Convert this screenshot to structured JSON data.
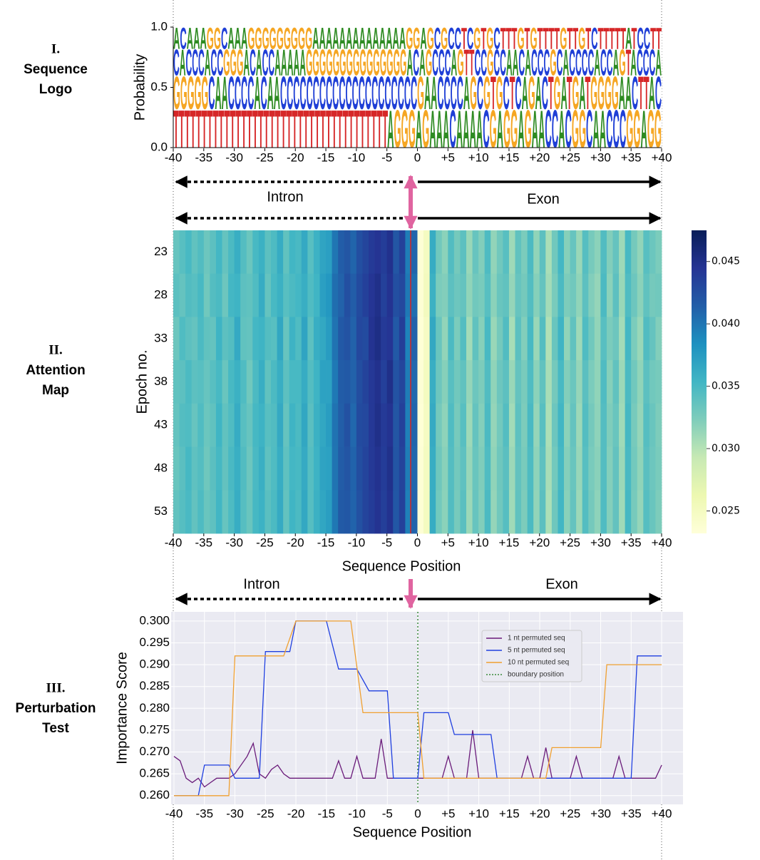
{
  "panels": [
    {
      "numeral": "I.",
      "lines": [
        "Sequence",
        "Logo"
      ]
    },
    {
      "numeral": "II.",
      "lines": [
        "Attention",
        "Map"
      ]
    },
    {
      "numeral": "III.",
      "lines": [
        "Perturbation",
        "Test"
      ]
    }
  ],
  "region_labels": {
    "upper": [
      "Intron",
      "Exon"
    ],
    "lower": [
      "Intron",
      "Exon"
    ]
  },
  "chart_data": [
    {
      "type": "logo",
      "ylabel": "Probability",
      "xlim": [
        -40,
        40
      ],
      "ylim": [
        0,
        1
      ],
      "yticks": [
        {
          "value": 0,
          "label": "0.0"
        },
        0.5,
        {
          "value": 1,
          "label": "1.0"
        }
      ],
      "xticks": [
        -40,
        -35,
        -30,
        -25,
        -20,
        -15,
        -10,
        -5,
        0,
        {
          "value": 5,
          "label": "+5"
        },
        {
          "value": 10,
          "label": "+10"
        },
        {
          "value": 15,
          "label": "+15"
        },
        {
          "value": 20,
          "label": "+20"
        },
        {
          "value": 25,
          "label": "+25"
        },
        {
          "value": 30,
          "label": "+30"
        },
        {
          "value": 35,
          "label": "+35"
        },
        {
          "value": 40,
          "label": "+40"
        }
      ],
      "letter_colors": {
        "A": "#2e8b22",
        "C": "#1f3fd6",
        "G": "#f5a623",
        "T": "#d62728"
      },
      "rows": [
        {
          "letters": "ACAAAGGCAAAGGGGGGGGGAAAAAAAAAAAAAAGGAGCGCCTCGTGCTTTGTGTTTTGTTGTCTTTTTATCCTT",
          "from": 0.82,
          "to": 1.0
        },
        {
          "letters": "CACCCACCGGGACACCAAAAAGGGGGGGGGGGGGGGACAGCCCAGTTCCGCCAACACCCGCACCCCACCAGTACCCA",
          "from": 0.6,
          "to": 0.82
        },
        {
          "letters": "GGGGGCAACCCCACAACCCCCCCCCCCCCCCCCCCCCGAACCCCAGCGTGCTCAGACTGATGATGGGGAACTTAC",
          "from": 0.32,
          "to": 0.6
        },
        {
          "letters": "TTTTTTTTTTTTTTTTTTTTTTTTTTTTTTTTTTTTTTAGGGAGAAACAAAACGAGGAGAACCACGGCAACCCGGAGG",
          "from": 0.0,
          "to": 0.32
        }
      ]
    },
    {
      "type": "heatmap",
      "ylabel": "Epoch no.",
      "xlabel": "Sequence Position",
      "xlim": [
        -40,
        40
      ],
      "xticks": [
        -40,
        -35,
        -30,
        -25,
        -20,
        -15,
        -10,
        -5,
        0,
        {
          "value": 5,
          "label": "+5"
        },
        {
          "value": 10,
          "label": "+10"
        },
        {
          "value": 15,
          "label": "+15"
        },
        {
          "value": 20,
          "label": "+20"
        },
        {
          "value": 25,
          "label": "+25"
        },
        {
          "value": 30,
          "label": "+30"
        },
        {
          "value": 35,
          "label": "+35"
        },
        {
          "value": 40,
          "label": "+40"
        }
      ],
      "x": [
        -40,
        -39,
        -38,
        -37,
        -36,
        -35,
        -34,
        -33,
        -32,
        -31,
        -30,
        -29,
        -28,
        -27,
        -26,
        -25,
        -24,
        -23,
        -22,
        -21,
        -20,
        -19,
        -18,
        -17,
        -16,
        -15,
        -14,
        -13,
        -12,
        -11,
        -10,
        -9,
        -8,
        -7,
        -6,
        -5,
        -4,
        -3,
        -2,
        -1,
        0,
        1,
        2,
        3,
        4,
        5,
        6,
        7,
        8,
        9,
        10,
        11,
        12,
        13,
        14,
        15,
        16,
        17,
        18,
        19,
        20,
        21,
        22,
        23,
        24,
        25,
        26,
        27,
        28,
        29,
        30,
        31,
        32,
        33,
        34,
        35,
        36,
        37,
        38,
        39
      ],
      "y": [
        23,
        28,
        33,
        38,
        43,
        48,
        53
      ],
      "clim": [
        0.0232,
        0.0475
      ],
      "colormap": "YlGnBu",
      "colorbar_ticks": [
        0.025,
        {
          "value": 0.03,
          "label": "0.030"
        },
        0.035,
        {
          "value": 0.04,
          "label": "0.040"
        },
        0.045
      ],
      "z": [
        [
          0.0335,
          0.0342,
          0.035,
          0.0338,
          0.0345,
          0.0332,
          0.034,
          0.0352,
          0.0336,
          0.0348,
          0.036,
          0.0344,
          0.0333,
          0.035,
          0.0358,
          0.034,
          0.0347,
          0.0362,
          0.0338,
          0.0353,
          0.0349,
          0.0364,
          0.0342,
          0.0357,
          0.0368,
          0.0372,
          0.04,
          0.0415,
          0.042,
          0.041,
          0.0425,
          0.0432,
          0.044,
          0.0445,
          0.0438,
          0.0448,
          0.042,
          0.0435,
          0.0395,
          0.041,
          0.0235,
          0.025,
          0.0362,
          0.033,
          0.0318,
          0.0345,
          0.0328,
          0.034,
          0.0312,
          0.0335,
          0.0322,
          0.0347,
          0.0315,
          0.033,
          0.0342,
          0.031,
          0.0338,
          0.0325,
          0.0348,
          0.0316,
          0.034,
          0.0305,
          0.033,
          0.0352,
          0.032,
          0.0335,
          0.0312,
          0.0343,
          0.0327,
          0.0318,
          0.0345,
          0.0322,
          0.0336,
          0.031,
          0.035,
          0.0328,
          0.0315,
          0.0342,
          0.0333,
          0.0325
        ],
        [
          0.034,
          0.0336,
          0.0345,
          0.0342,
          0.035,
          0.033,
          0.0344,
          0.0348,
          0.0332,
          0.0352,
          0.0355,
          0.034,
          0.0338,
          0.0346,
          0.0362,
          0.0336,
          0.035,
          0.0358,
          0.0342,
          0.0348,
          0.0352,
          0.036,
          0.0346,
          0.0354,
          0.0372,
          0.0378,
          0.0405,
          0.0412,
          0.0425,
          0.0415,
          0.0428,
          0.0436,
          0.0444,
          0.045,
          0.0435,
          0.0446,
          0.0425,
          0.043,
          0.0398,
          0.0405,
          0.0236,
          0.0252,
          0.0358,
          0.0325,
          0.0322,
          0.034,
          0.0332,
          0.0336,
          0.0316,
          0.033,
          0.0326,
          0.0342,
          0.0318,
          0.0334,
          0.0338,
          0.0314,
          0.0335,
          0.0328,
          0.0344,
          0.032,
          0.0336,
          0.0308,
          0.0326,
          0.0348,
          0.0324,
          0.033,
          0.0316,
          0.034,
          0.0322,
          0.0314,
          0.0348,
          0.0318,
          0.034,
          0.0312,
          0.0346,
          0.0332,
          0.0318,
          0.0338,
          0.0328,
          0.033
        ],
        [
          0.0332,
          0.0346,
          0.034,
          0.0336,
          0.0348,
          0.0338,
          0.0336,
          0.0355,
          0.034,
          0.0344,
          0.0364,
          0.0338,
          0.0336,
          0.0352,
          0.0355,
          0.0344,
          0.0342,
          0.0366,
          0.0335,
          0.0356,
          0.0346,
          0.0368,
          0.034,
          0.036,
          0.0365,
          0.0375,
          0.0402,
          0.0418,
          0.0422,
          0.0412,
          0.043,
          0.0428,
          0.0446,
          0.0452,
          0.044,
          0.0444,
          0.0418,
          0.0438,
          0.0392,
          0.0412,
          0.0234,
          0.0248,
          0.0365,
          0.0334,
          0.0315,
          0.0348,
          0.0325,
          0.0344,
          0.0308,
          0.0338,
          0.032,
          0.035,
          0.0312,
          0.0328,
          0.0345,
          0.0306,
          0.034,
          0.0322,
          0.035,
          0.0312,
          0.0344,
          0.0302,
          0.0334,
          0.0355,
          0.0316,
          0.0338,
          0.031,
          0.0346,
          0.033,
          0.0315,
          0.0342,
          0.0325,
          0.0332,
          0.0308,
          0.0352,
          0.0325,
          0.0312,
          0.0345,
          0.0336,
          0.0322
        ],
        [
          0.0338,
          0.034,
          0.0348,
          0.034,
          0.0342,
          0.0335,
          0.0342,
          0.035,
          0.0334,
          0.035,
          0.0358,
          0.0346,
          0.033,
          0.0348,
          0.036,
          0.0338,
          0.0348,
          0.036,
          0.034,
          0.035,
          0.035,
          0.0362,
          0.0344,
          0.0355,
          0.037,
          0.037,
          0.0398,
          0.0416,
          0.0418,
          0.0412,
          0.0426,
          0.0434,
          0.0442,
          0.0448,
          0.0436,
          0.045,
          0.0422,
          0.0432,
          0.0396,
          0.0408,
          0.0235,
          0.0251,
          0.036,
          0.0332,
          0.032,
          0.0342,
          0.033,
          0.0338,
          0.0314,
          0.0332,
          0.0324,
          0.0345,
          0.0316,
          0.0332,
          0.034,
          0.0312,
          0.0336,
          0.0326,
          0.0346,
          0.0318,
          0.0338,
          0.0306,
          0.0328,
          0.035,
          0.0322,
          0.0333,
          0.0314,
          0.0341,
          0.0325,
          0.0316,
          0.0346,
          0.032,
          0.0338,
          0.0311,
          0.0348,
          0.033,
          0.0316,
          0.034,
          0.033,
          0.0327
        ],
        [
          0.0336,
          0.0344,
          0.0346,
          0.0335,
          0.0346,
          0.0333,
          0.0338,
          0.0354,
          0.0338,
          0.0346,
          0.0362,
          0.0342,
          0.0335,
          0.0351,
          0.0356,
          0.0342,
          0.0345,
          0.0364,
          0.0336,
          0.0355,
          0.0348,
          0.0366,
          0.0341,
          0.0358,
          0.0366,
          0.0374,
          0.0402,
          0.0414,
          0.0424,
          0.0408,
          0.0428,
          0.043,
          0.0442,
          0.045,
          0.044,
          0.0446,
          0.042,
          0.0436,
          0.0394,
          0.041,
          0.0234,
          0.0249,
          0.0363,
          0.0328,
          0.0317,
          0.0346,
          0.0327,
          0.0342,
          0.031,
          0.0336,
          0.0321,
          0.0348,
          0.0314,
          0.0329,
          0.0344,
          0.0308,
          0.0339,
          0.0324,
          0.0349,
          0.0314,
          0.0342,
          0.0304,
          0.0332,
          0.0353,
          0.0318,
          0.0336,
          0.0311,
          0.0344,
          0.0328,
          0.0317,
          0.0344,
          0.0323,
          0.0334,
          0.0309,
          0.0351,
          0.0327,
          0.0314,
          0.0343,
          0.0334,
          0.0324
        ],
        [
          0.0334,
          0.0341,
          0.0351,
          0.0339,
          0.0344,
          0.0331,
          0.0341,
          0.0351,
          0.0337,
          0.0349,
          0.0359,
          0.0345,
          0.0332,
          0.0349,
          0.0359,
          0.0339,
          0.0346,
          0.0361,
          0.0339,
          0.0352,
          0.035,
          0.0363,
          0.0343,
          0.0356,
          0.0369,
          0.0371,
          0.0401,
          0.0416,
          0.0421,
          0.0411,
          0.0426,
          0.0433,
          0.0441,
          0.0447,
          0.0439,
          0.0449,
          0.0421,
          0.0434,
          0.0396,
          0.0409,
          0.0235,
          0.025,
          0.0361,
          0.0331,
          0.0319,
          0.0344,
          0.0329,
          0.0339,
          0.0313,
          0.0334,
          0.0323,
          0.0346,
          0.0316,
          0.0331,
          0.0341,
          0.0311,
          0.0337,
          0.0326,
          0.0347,
          0.0317,
          0.0339,
          0.0306,
          0.0329,
          0.0351,
          0.0321,
          0.0334,
          0.0313,
          0.0342,
          0.0326,
          0.0319,
          0.0344,
          0.0321,
          0.0337,
          0.0311,
          0.0349,
          0.0329,
          0.0316,
          0.0341,
          0.0332,
          0.0326
        ],
        [
          0.0337,
          0.0343,
          0.0349,
          0.0337,
          0.0347,
          0.0334,
          0.0339,
          0.0353,
          0.0335,
          0.0347,
          0.0361,
          0.0343,
          0.0334,
          0.0351,
          0.0357,
          0.0341,
          0.0348,
          0.0363,
          0.0337,
          0.0354,
          0.0348,
          0.0365,
          0.0343,
          0.0358,
          0.0367,
          0.0373,
          0.0399,
          0.0417,
          0.0419,
          0.0411,
          0.0424,
          0.0433,
          0.0439,
          0.0446,
          0.0437,
          0.0447,
          0.0419,
          0.0436,
          0.0394,
          0.0411,
          0.0236,
          0.0251,
          0.0362,
          0.0329,
          0.0318,
          0.0345,
          0.0327,
          0.0341,
          0.0311,
          0.0335,
          0.0322,
          0.0348,
          0.0314,
          0.033,
          0.0343,
          0.0309,
          0.0338,
          0.0324,
          0.0348,
          0.0315,
          0.0341,
          0.0304,
          0.0331,
          0.0353,
          0.0319,
          0.0336,
          0.0311,
          0.0344,
          0.0328,
          0.0317,
          0.0346,
          0.0321,
          0.0337,
          0.0309,
          0.0351,
          0.0327,
          0.0314,
          0.0343,
          0.0334,
          0.0324
        ]
      ]
    },
    {
      "type": "line",
      "ylabel": "Importance Score",
      "xlabel": "Sequence Position",
      "xlim": [
        -40.47,
        43.5
      ],
      "ylim": [
        0.258,
        0.3021
      ],
      "grid": true,
      "legend": "upper-right",
      "xticks": [
        -40,
        -35,
        -30,
        -25,
        -20,
        -15,
        -10,
        -5,
        0,
        {
          "value": 5,
          "label": "+5"
        },
        {
          "value": 10,
          "label": "+10"
        },
        {
          "value": 15,
          "label": "+15"
        },
        {
          "value": 20,
          "label": "+20"
        },
        {
          "value": 25,
          "label": "+25"
        },
        {
          "value": 30,
          "label": "+30"
        },
        {
          "value": 35,
          "label": "+35"
        },
        {
          "value": 40,
          "label": "+40"
        }
      ],
      "yticks": [
        {
          "value": 0.26,
          "label": "0.260"
        },
        0.265,
        {
          "value": 0.27,
          "label": "0.270"
        },
        0.275,
        {
          "value": 0.28,
          "label": "0.280"
        },
        0.285,
        {
          "value": 0.29,
          "label": "0.290"
        },
        0.295,
        {
          "value": 0.3,
          "label": "0.300"
        }
      ],
      "series": [
        {
          "name": "1 nt permuted seq",
          "color": "#6a1b7a",
          "x": [
            -40,
            -39,
            -38,
            -37,
            -36,
            -35,
            -34,
            -33,
            -32,
            -31,
            -30,
            -28,
            -27,
            -26,
            -25,
            -24,
            -23,
            -22,
            -21,
            -14,
            -13,
            -12,
            -11,
            -10,
            -9,
            -7,
            -6,
            -5,
            0,
            4,
            5,
            6,
            8,
            9,
            10,
            17,
            18,
            19,
            20,
            21,
            22,
            25,
            26,
            27,
            32,
            33,
            34,
            39,
            40
          ],
          "values": [
            0.269,
            0.268,
            0.264,
            0.263,
            0.264,
            0.262,
            0.263,
            0.264,
            0.264,
            0.264,
            0.265,
            0.269,
            0.272,
            0.265,
            0.264,
            0.266,
            0.267,
            0.265,
            0.264,
            0.264,
            0.268,
            0.264,
            0.264,
            0.269,
            0.264,
            0.264,
            0.273,
            0.264,
            0.264,
            0.264,
            0.269,
            0.264,
            0.264,
            0.275,
            0.264,
            0.264,
            0.269,
            0.264,
            0.264,
            0.271,
            0.264,
            0.264,
            0.269,
            0.264,
            0.264,
            0.269,
            0.264,
            0.264,
            0.267
          ]
        },
        {
          "name": "5 nt permuted seq",
          "color": "#1f3fe0",
          "x": [
            -40,
            -36,
            -35,
            -31,
            -30,
            -26,
            -25,
            -21,
            -20,
            -15,
            -13,
            -10,
            -8,
            -5,
            -4,
            0,
            1,
            5,
            6,
            10,
            12,
            13,
            35,
            36,
            40
          ],
          "values": [
            0.26,
            0.26,
            0.267,
            0.267,
            0.264,
            0.264,
            0.293,
            0.293,
            0.3,
            0.3,
            0.289,
            0.289,
            0.284,
            0.284,
            0.264,
            0.264,
            0.279,
            0.279,
            0.274,
            0.274,
            0.274,
            0.264,
            0.264,
            0.292,
            0.292
          ]
        },
        {
          "name": "10 nt permuted seq",
          "color": "#f0a030",
          "x": [
            -40,
            -31,
            -30,
            -22,
            -20,
            -11,
            -9,
            0,
            1,
            21,
            22,
            30,
            31,
            40
          ],
          "values": [
            0.26,
            0.26,
            0.292,
            0.292,
            0.3,
            0.3,
            0.279,
            0.279,
            0.264,
            0.264,
            0.271,
            0.271,
            0.29,
            0.29
          ]
        }
      ],
      "boundary": {
        "name": "boundary position",
        "x": 0,
        "color": "#3a8a3a"
      }
    }
  ]
}
